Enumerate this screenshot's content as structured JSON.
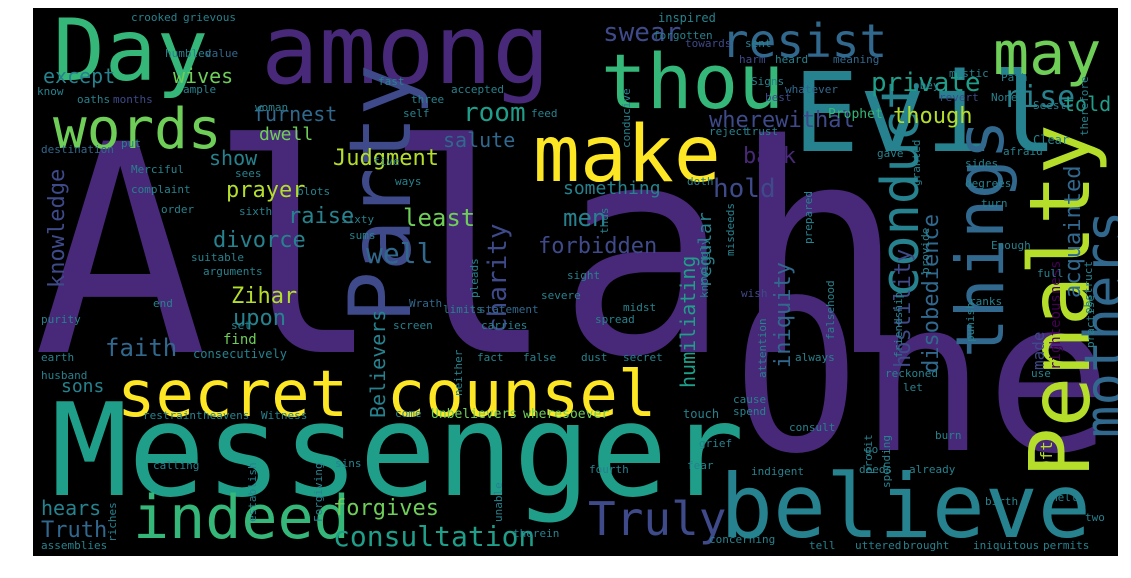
{
  "palette": {
    "background": "#000000",
    "purple": "#482878",
    "indigo": "#3e4a89",
    "blue": "#31688e",
    "teal": "#26828e",
    "green": "#1f9e89",
    "mint": "#35b779",
    "lime": "#6ece58",
    "yellowgreen": "#b5de2b",
    "yellow": "#fde725",
    "dark": "#440154"
  },
  "words": {
    "allah": "Allah",
    "one": "One",
    "messenger": "Messenger",
    "evil": "Evil",
    "secret_counsel": "secret counsel",
    "among": "among",
    "day": "Day",
    "thou": "thou",
    "believe": "believe",
    "penalty": "Penalty",
    "party": "Party",
    "make": "make",
    "things": "things",
    "indeed": "indeed",
    "words": "words",
    "mothers": "mothers",
    "conduct": "conduct",
    "resist": "resist",
    "may": "may",
    "truly": "Truly",
    "consultation": "consultation",
    "private": "private",
    "rise": "rise",
    "swear": "swear",
    "room": "room",
    "furnest": "furnest",
    "except": "except",
    "wives": "wives",
    "told": "told",
    "though": "though",
    "wherewithal": "wherewithal",
    "salute": "salute",
    "judgment": "Judgment",
    "prayer": "prayer",
    "raise": "raise",
    "divorce": "divorce",
    "show": "show",
    "knowledge": "knowledge",
    "least": "least",
    "charity": "charity",
    "men": "men",
    "hold": "hold",
    "back": "back",
    "forbidden": "forbidden",
    "well": "well",
    "zihar": "Zihar",
    "upon": "upon",
    "faith": "faith",
    "believers": "Believers",
    "sons": "sons",
    "hears": "hears",
    "forgives": "forgives",
    "truth": "Truth",
    "iniquity": "iniquity",
    "hostility": "hostility",
    "disobedience": "disobedience",
    "acquainted": "acquainted",
    "humiliating": "humiliating",
    "regular": "regular",
    "something": "something",
    "dwell": "dwell",
    "find": "find",
    "made": "made",
    "righteousness": "righteousness",
    "oft": "Oft",
    "assemblies": "assemblies",
    "crooked": "crooked",
    "grievous": "grievous",
    "inspired": "inspired",
    "humbled": "humbled",
    "value": "value",
    "forgotten": "forgotten",
    "sent": "sent",
    "heard": "heard",
    "towards": "towards",
    "harm": "harm",
    "meaning": "meaning",
    "know": "know",
    "oaths": "oaths",
    "months": "months",
    "ample": "ample",
    "fast": "fast",
    "accepted": "accepted",
    "three": "three",
    "signs": "Signs",
    "whatever": "whatever",
    "mystic": "mystic",
    "path": "Path",
    "obey": "obey",
    "none": "None",
    "revert": "revert",
    "seest": "Seest",
    "self": "self",
    "best": "best",
    "woman": "woman",
    "feed": "feed",
    "conducive": "conducive",
    "prophet": "Prophet",
    "reject": "reject",
    "trust": "trust",
    "clear": "Clear",
    "afraid": "afraid",
    "therefore": "therefore",
    "destination": "destination",
    "put": "put",
    "gave": "gave",
    "granted": "granted",
    "sides": "sides",
    "merciful": "Merciful",
    "sees": "sees",
    "five": "five",
    "doth": "doth",
    "prepared": "prepared",
    "degrees": "degrees",
    "complaint": "complaint",
    "blots": "blots",
    "ways": "ways",
    "order": "order",
    "thus": "thus",
    "misdeeds": "misdeeds",
    "turn": "turn",
    "provide": "provide",
    "sixth": "sixth",
    "sixty": "sixty",
    "sums": "sums",
    "knowingly": "knowingly",
    "enough": "Enough",
    "suitable": "suitable",
    "arguments": "arguments",
    "pleads": "pleads",
    "sight": "sight",
    "full": "full",
    "wish": "wish",
    "friendship": "friendship",
    "ranks": "ranks",
    "obstruct": "obstruct",
    "end": "end",
    "severe": "severe",
    "wrath": "Wrath",
    "limits": "limits",
    "statement": "statement",
    "midst": "midst",
    "falsehood": "falsehood",
    "punish": "punish",
    "practise": "practise",
    "purity": "purity",
    "set": "set",
    "screen": "screen",
    "carries": "carries",
    "spread": "spread",
    "attention": "attention",
    "earth": "earth",
    "consecutively": "consecutively",
    "fact": "fact",
    "false": "false",
    "dust": "dust",
    "secret": "secret",
    "always": "always",
    "reckoned": "reckoned",
    "use": "use",
    "husband": "husband",
    "neither": "neither",
    "let": "let",
    "restraint": "restraint",
    "heavens": "heavens",
    "witness": "Witness",
    "come": "come",
    "unbelievers": "Unbelievers",
    "wheresoever": "wheresoever",
    "touch": "touch",
    "cause": "cause",
    "spend": "spend",
    "consult": "consult",
    "profit": "profit",
    "spending": "spending",
    "burn": "burn",
    "calling": "calling",
    "establish": "establish",
    "forgiving": "Forgiving",
    "unable": "unable",
    "sins": "sins",
    "fourth": "fourth",
    "grief": "grief",
    "fear": "fear",
    "go": "go",
    "indigent": "indigent",
    "deeds": "deeds",
    "already": "already",
    "riches": "riches",
    "birth": "birth",
    "hell": "Hell",
    "two": "two",
    "therein": "therein",
    "concerning": "concerning",
    "tell": "tell",
    "uttered": "uttered",
    "brought": "brought",
    "iniquitous": "iniquitous",
    "permits": "permits"
  }
}
